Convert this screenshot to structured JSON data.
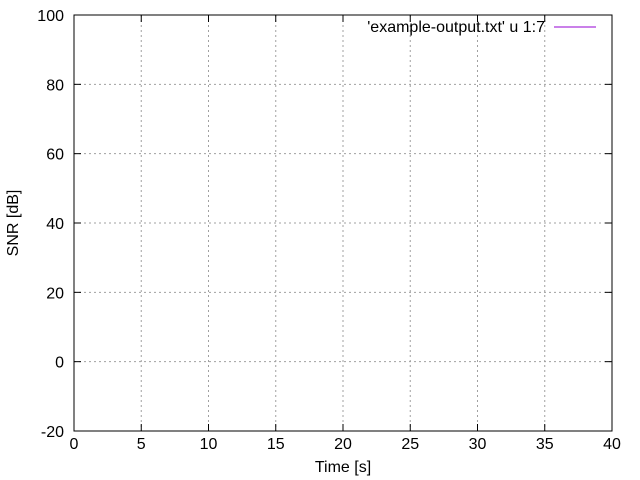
{
  "chart_data": {
    "type": "line",
    "title": "",
    "xlabel": "Time [s]",
    "ylabel": "SNR [dB]",
    "xlim": [
      0,
      40
    ],
    "ylim": [
      -20,
      100
    ],
    "xticks": [
      0,
      5,
      10,
      15,
      20,
      25,
      30,
      35,
      40
    ],
    "yticks": [
      -20,
      0,
      20,
      40,
      60,
      80,
      100
    ],
    "grid": true,
    "legend_position": "top-right",
    "series": [
      {
        "name": "'example-output.txt' u 1:7",
        "color": "#9400d3",
        "x": [],
        "y": []
      }
    ]
  }
}
